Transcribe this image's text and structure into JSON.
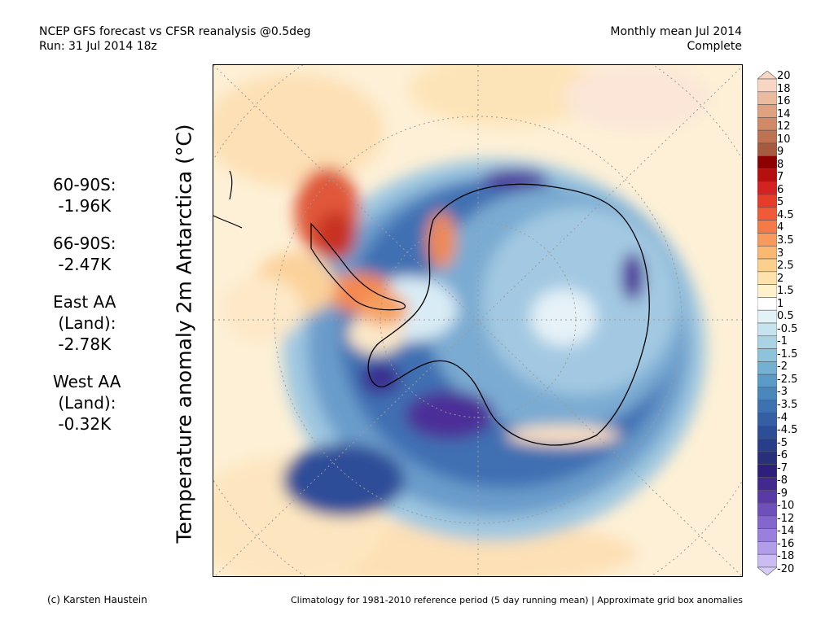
{
  "header": {
    "line1_left": "NCEP GFS forecast vs CFSR reanalysis @0.5deg",
    "line2_left": "Run: 31 Jul 2014 18z",
    "line1_right": "Monthly mean Jul 2014",
    "line2_right": "Complete"
  },
  "y_axis_label": "Temperature anomaly 2m Antarctica (°C)",
  "stats": [
    {
      "lines": [
        "60-90S:",
        " -1.96K"
      ]
    },
    {
      "lines": [
        "66-90S:",
        " -2.47K"
      ]
    },
    {
      "lines": [
        "East AA",
        " (Land):",
        " -2.78K"
      ]
    },
    {
      "lines": [
        "West AA",
        " (Land):",
        " -0.32K"
      ]
    }
  ],
  "colorbar": {
    "labels": [
      "20",
      "18",
      "16",
      "14",
      "12",
      "10",
      "9",
      "8",
      "7",
      "6",
      "5",
      "4.5",
      "4",
      "3.5",
      "3",
      "2.5",
      "2",
      "1.5",
      "1",
      "0.5",
      "-0.5",
      "-1",
      "-1.5",
      "-2",
      "-2.5",
      "-3",
      "-3.5",
      "-4",
      "-4.5",
      "-5",
      "-6",
      "-7",
      "-8",
      "-9",
      "-10",
      "-12",
      "-14",
      "-16",
      "-18",
      "-20"
    ],
    "colors": [
      "#f7d6c4",
      "#ebbba0",
      "#dfa281",
      "#d08a68",
      "#bf7252",
      "#a85a40",
      "#8f0000",
      "#b50f0f",
      "#d42222",
      "#e63c2a",
      "#f05a38",
      "#f47a48",
      "#f79a5c",
      "#fab872",
      "#fbd08c",
      "#fde3ab",
      "#fef1cc",
      "#ffffff",
      "#e3f2f8",
      "#c7e3ef",
      "#aad3e6",
      "#8ec3dc",
      "#73b1d2",
      "#5a9cc7",
      "#4987bc",
      "#3d72b0",
      "#345fa4",
      "#2c4e98",
      "#273f8b",
      "#28307c",
      "#2e1f7c",
      "#43298f",
      "#5a3aa5",
      "#6f4fba",
      "#8466cc",
      "#9a80dc",
      "#b29de9",
      "#cbbcf3"
    ],
    "arrow_top": "#f7d6c4",
    "arrow_bottom": "#d6ccf7"
  },
  "footer": {
    "left": "(c) Karsten Haustein",
    "right": "Climatology for 1981-2010 reference period (5 day running mean) | Approximate grid box anomalies"
  }
}
